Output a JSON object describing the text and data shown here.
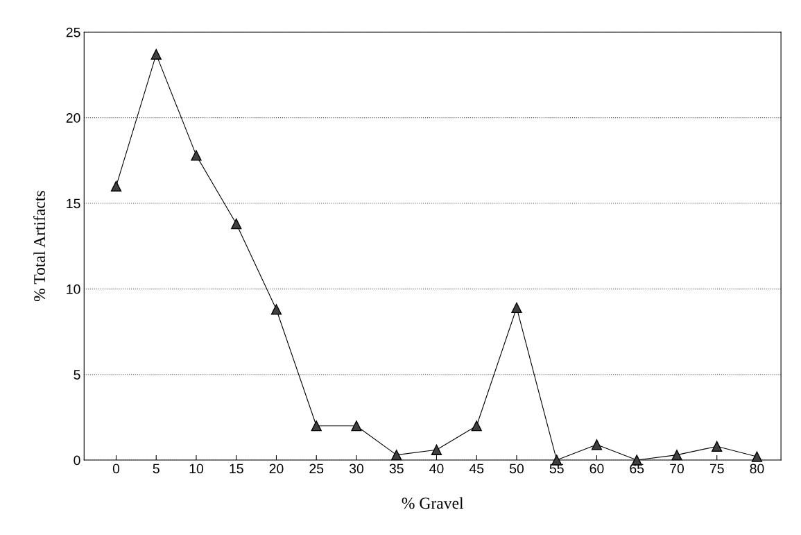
{
  "chart_data": {
    "type": "line",
    "xlabel": "% Gravel",
    "ylabel": "% Total Artifacts",
    "x": [
      0,
      5,
      10,
      15,
      20,
      25,
      30,
      35,
      40,
      45,
      50,
      55,
      60,
      65,
      70,
      75,
      80
    ],
    "series": [
      {
        "color": "#000000",
        "values": [
          16,
          23.7,
          17.8,
          13.8,
          8.8,
          2,
          2,
          0.3,
          0.6,
          2,
          8.9,
          0,
          0.9,
          0,
          0.3,
          0.8,
          0.2
        ]
      }
    ],
    "xlim": [
      -4,
      83
    ],
    "ylim": [
      0,
      25
    ],
    "xticks": [
      0,
      5,
      10,
      15,
      20,
      25,
      30,
      35,
      40,
      45,
      50,
      55,
      60,
      65,
      70,
      75,
      80
    ],
    "yticks": [
      0,
      5,
      10,
      15,
      20,
      25
    ],
    "grid": "y",
    "marker": "triangle",
    "line_style": "solid"
  }
}
